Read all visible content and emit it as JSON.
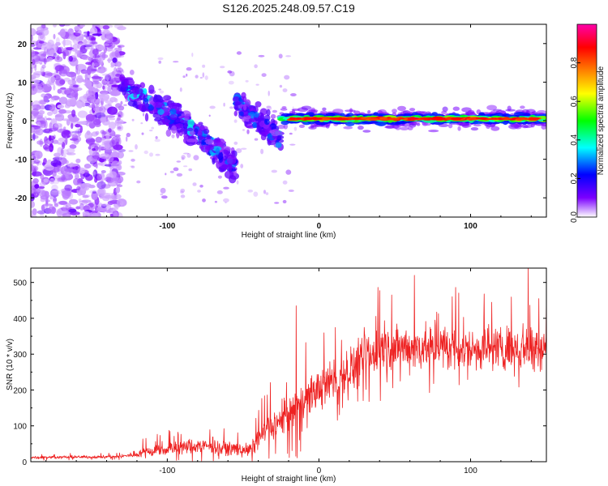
{
  "chart_data": [
    {
      "type": "heatmap",
      "title": "S126.2025.248.09.57.C19",
      "xlabel": "Height of straight line (km)",
      "ylabel": "Frequency (Hz)",
      "xlim": [
        -190,
        150
      ],
      "ylim": [
        -25,
        25
      ],
      "xticks": [
        -100,
        0,
        100
      ],
      "yticks": [
        -20,
        -10,
        0,
        10,
        20
      ],
      "colorbar": {
        "label": "Normalized spectral amplitude",
        "range": [
          0.0,
          1.0
        ],
        "ticks": [
          0.0,
          0.2,
          0.4,
          0.6,
          0.8
        ],
        "colormap": [
          "#ffffff",
          "#7b00ff",
          "#0000ff",
          "#00ffff",
          "#00ff00",
          "#ffff00",
          "#ff8000",
          "#ff0000",
          "#ff00aa"
        ]
      },
      "features": [
        {
          "name": "noise",
          "x_range": [
            -190,
            -130
          ],
          "freq_range": [
            -25,
            25
          ],
          "amplitude": 0.05
        },
        {
          "name": "descending-track",
          "x_range": [
            -130,
            -55
          ],
          "freq_start": 8,
          "freq_end": -12,
          "amplitude": 0.25
        },
        {
          "name": "second-arc",
          "x_range": [
            -55,
            -25
          ],
          "freq_start": 5,
          "freq_end": -5,
          "amplitude": 0.2
        },
        {
          "name": "stable-line",
          "x_range": [
            -25,
            150
          ],
          "freq": 0.5,
          "amplitude": 0.9
        }
      ]
    },
    {
      "type": "line",
      "xlabel": "Height of straight line (km)",
      "ylabel": "SNR (10 * v/v)",
      "xlim": [
        -190,
        150
      ],
      "ylim": [
        0,
        540
      ],
      "xticks": [
        -100,
        0,
        100
      ],
      "yticks": [
        0,
        100,
        200,
        300,
        400,
        500
      ],
      "series": [
        {
          "name": "SNR",
          "color": "#ee2222",
          "trend_x": [
            -190,
            -130,
            -110,
            -80,
            -60,
            -45,
            -35,
            -25,
            -15,
            -5,
            10,
            25,
            40,
            60,
            80,
            100,
            120,
            140,
            150
          ],
          "trend_y": [
            12,
            14,
            30,
            45,
            38,
            32,
            90,
            110,
            150,
            190,
            230,
            270,
            310,
            320,
            320,
            315,
            320,
            320,
            330
          ],
          "noise_amplitude": [
            6,
            6,
            25,
            30,
            25,
            25,
            60,
            70,
            75,
            80,
            80,
            90,
            95,
            95,
            90,
            90,
            90,
            95,
            95
          ],
          "peaks": [
            {
              "x": -15,
              "y": 435
            },
            {
              "x": 48,
              "y": 465
            },
            {
              "x": 63,
              "y": 520
            },
            {
              "x": 138,
              "y": 540
            },
            {
              "x": 145,
              "y": 455
            },
            {
              "x": 150,
              "y": 460
            }
          ]
        }
      ]
    }
  ]
}
